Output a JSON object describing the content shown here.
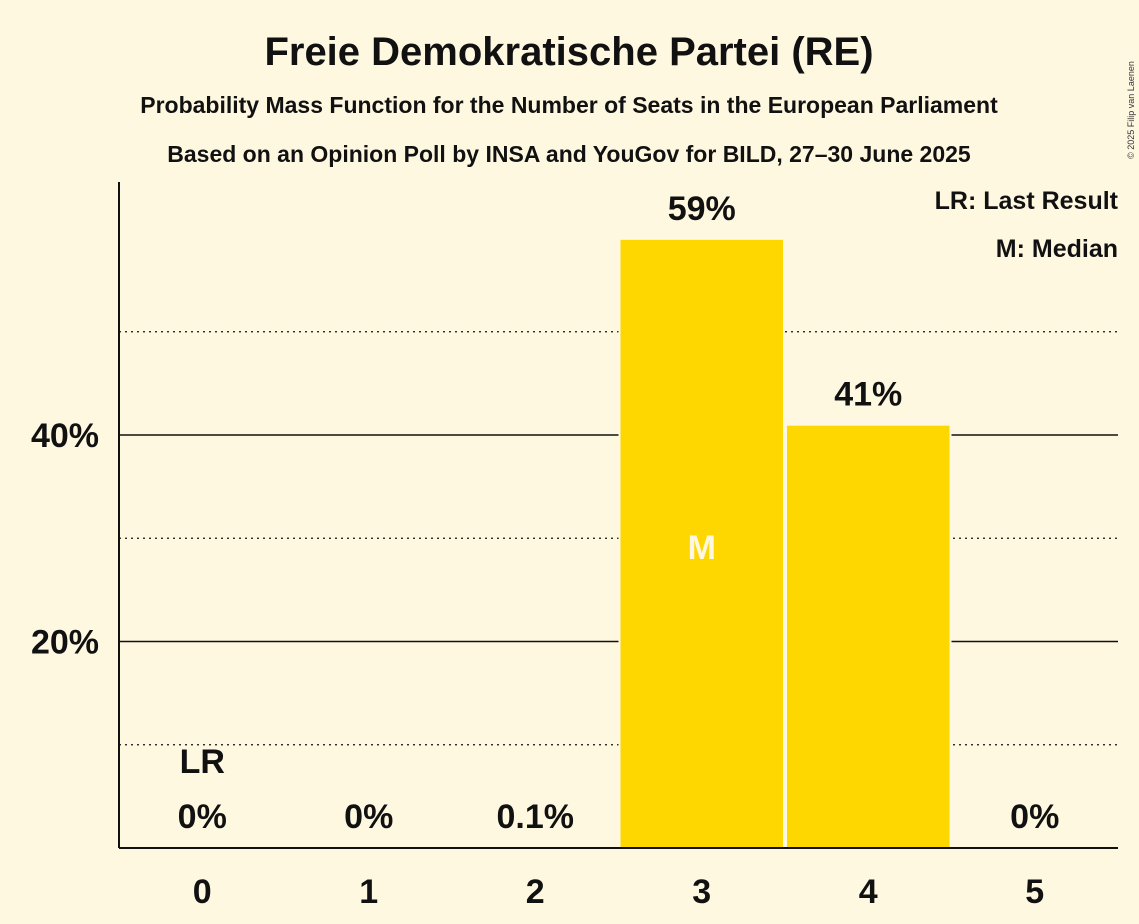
{
  "chart_data": {
    "type": "bar",
    "title": "Freie Demokratische Partei (RE)",
    "subtitle": "Probability Mass Function for the Number of Seats in the European Parliament",
    "subtitle2": "Based on an Opinion Poll by INSA and YouGov for BILD, 27–30 June 2025",
    "categories": [
      "0",
      "1",
      "2",
      "3",
      "4",
      "5"
    ],
    "values": [
      0,
      0,
      0.1,
      59,
      41,
      0
    ],
    "value_labels": [
      "0%",
      "0%",
      "0.1%",
      "59%",
      "41%",
      "0%"
    ],
    "ylim": [
      0,
      65
    ],
    "y_ticks": [
      20,
      40
    ],
    "y_tick_labels": [
      "20%",
      "40%"
    ],
    "minor_gridlines": [
      10,
      30,
      50
    ],
    "last_result_index": 0,
    "last_result_mark": "LR",
    "median_index": 3,
    "median_mark": "M",
    "legend": [
      "LR: Last Result",
      "M: Median"
    ],
    "legend_position": "top-right",
    "bar_color": "#ffd700",
    "median_text_color": "#fff8e1",
    "copyright": "© 2025 Filip van Laenen"
  }
}
